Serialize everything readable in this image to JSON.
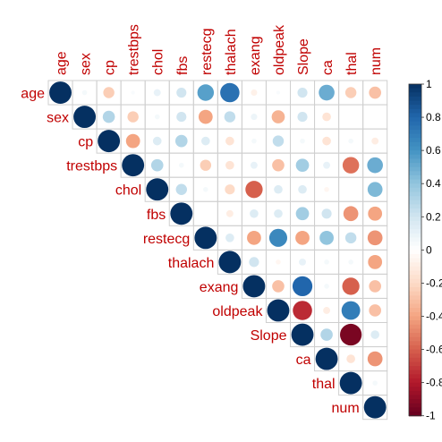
{
  "chart_data": {
    "type": "heatmap",
    "subtype": "corrplot-upper-circle",
    "variables": [
      "age",
      "sex",
      "cp",
      "trestbps",
      "chol",
      "fbs",
      "restecg",
      "thalach",
      "exang",
      "oldpeak",
      "Slope",
      "ca",
      "thal",
      "num"
    ],
    "matrix": [
      [
        1.0,
        0.05,
        -0.25,
        0.03,
        0.1,
        0.2,
        0.55,
        0.75,
        -0.08,
        0.03,
        0.2,
        0.5,
        -0.25,
        -0.3
      ],
      [
        null,
        1.0,
        0.3,
        -0.25,
        0.05,
        0.2,
        -0.4,
        0.25,
        0.08,
        -0.35,
        0.2,
        -0.15,
        0.0,
        0.0
      ],
      [
        null,
        null,
        1.0,
        -0.4,
        0.15,
        0.3,
        0.15,
        -0.15,
        0.05,
        0.25,
        0.05,
        -0.15,
        0.05,
        -0.1
      ],
      [
        null,
        null,
        null,
        1.0,
        0.3,
        0.05,
        -0.25,
        -0.15,
        0.1,
        -0.3,
        0.35,
        0.1,
        -0.55,
        0.5
      ],
      [
        null,
        null,
        null,
        null,
        1.0,
        0.25,
        0.05,
        -0.2,
        -0.6,
        0.15,
        0.15,
        -0.05,
        0.0,
        0.45
      ],
      [
        null,
        null,
        null,
        null,
        null,
        1.0,
        0.0,
        -0.1,
        0.15,
        0.15,
        0.35,
        0.2,
        -0.45,
        -0.4
      ],
      [
        null,
        null,
        null,
        null,
        null,
        null,
        1.0,
        0.15,
        -0.4,
        0.65,
        -0.4,
        0.4,
        0.25,
        -0.45
      ],
      [
        null,
        null,
        null,
        null,
        null,
        null,
        null,
        1.0,
        0.2,
        -0.05,
        0.1,
        0.05,
        0.05,
        -0.4
      ],
      [
        null,
        null,
        null,
        null,
        null,
        null,
        null,
        null,
        1.0,
        -0.3,
        0.8,
        0.05,
        -0.6,
        -0.3
      ],
      [
        null,
        null,
        null,
        null,
        null,
        null,
        null,
        null,
        null,
        1.0,
        -0.75,
        -0.1,
        0.7,
        -0.3
      ],
      [
        null,
        null,
        null,
        null,
        null,
        null,
        null,
        null,
        null,
        null,
        1.0,
        0.3,
        -0.95,
        0.15
      ],
      [
        null,
        null,
        null,
        null,
        null,
        null,
        null,
        null,
        null,
        null,
        null,
        1.0,
        -0.15,
        -0.45
      ],
      [
        null,
        null,
        null,
        null,
        null,
        null,
        null,
        null,
        null,
        null,
        null,
        null,
        1.0,
        0.05
      ],
      [
        null,
        null,
        null,
        null,
        null,
        null,
        null,
        null,
        null,
        null,
        null,
        null,
        null,
        1.0
      ]
    ],
    "colorbar": {
      "range": [
        -1,
        1
      ],
      "ticks": [
        1,
        0.8,
        0.6,
        0.4,
        0.2,
        0,
        -0.2,
        -0.4,
        -0.6,
        -0.8,
        -1
      ],
      "tick_labels": [
        "1",
        "0.8",
        "0.6",
        "0.4",
        "0.2",
        "0",
        "-0.2",
        "-0.4",
        "-0.6",
        "-0.8",
        "-1"
      ],
      "colors": {
        "negative": "#67001f",
        "neutral": "#ffffff",
        "positive": "#053061"
      }
    },
    "grid": true,
    "label_color": "#c00000",
    "legend_placement": "right"
  }
}
